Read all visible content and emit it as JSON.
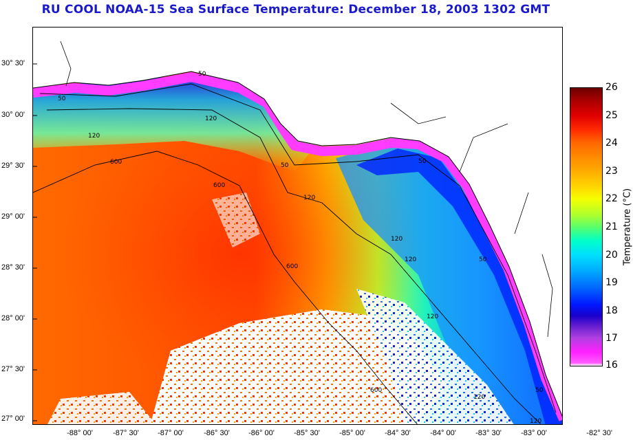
{
  "title": "RU COOL  NOAA-15  Sea Surface Temperature:  December 18, 2003 1302 GMT",
  "latitude_labels": [
    "30° 30'",
    "30° 00'",
    "29° 30'",
    "29° 00'",
    "28° 30'",
    "28° 00'",
    "27° 30'",
    "27° 00'"
  ],
  "longitude_labels": [
    "-88° 00'",
    "-87° 30'",
    "-87° 00'",
    "-86° 30'",
    "-86° 00'",
    "-85° 30'",
    "-85° 00'",
    "-84° 30'",
    "-84° 00'",
    "-83° 30'",
    "-83° 00'",
    "-82° 30'"
  ],
  "colorbar": {
    "label": "Temperature (°C)",
    "ticks": [
      "26",
      "25",
      "24",
      "23",
      "22",
      "21",
      "20",
      "19",
      "18",
      "17",
      "16"
    ]
  },
  "contour_labels": [
    "50",
    "50",
    "50",
    "50",
    "50",
    "50",
    "120",
    "120",
    "120",
    "120",
    "120",
    "120",
    "120",
    "120",
    "600",
    "600",
    "600",
    "600"
  ],
  "colors": {
    "title": "#1a1acc",
    "warm": "#ff5a00",
    "cool": "#0030ff",
    "cloud": "#ffffff",
    "land": "#ffffff",
    "coast_edge": "#ff3cff"
  }
}
